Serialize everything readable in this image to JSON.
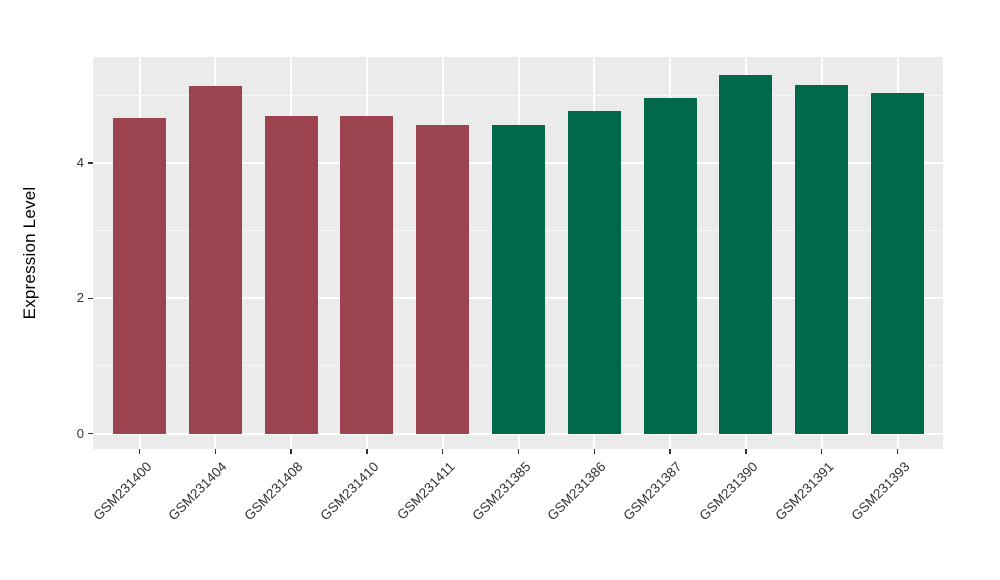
{
  "chart_data": {
    "type": "bar",
    "title": "",
    "ylabel": "Expression Level",
    "xlabel": "",
    "categories": [
      "GSM231400",
      "GSM231404",
      "GSM231408",
      "GSM231410",
      "GSM231411",
      "GSM231385",
      "GSM231386",
      "GSM231387",
      "GSM231390",
      "GSM231391",
      "GSM231393"
    ],
    "values": [
      4.66,
      5.14,
      4.7,
      4.69,
      4.57,
      4.57,
      4.77,
      4.96,
      5.3,
      5.15,
      5.04
    ],
    "bar_colors": [
      "#9B4450",
      "#9B4450",
      "#9B4450",
      "#9B4450",
      "#9B4450",
      "#00694A",
      "#00694A",
      "#00694A",
      "#00694A",
      "#00694A",
      "#00694A"
    ],
    "ytick_labels": [
      "0",
      "2",
      "4"
    ],
    "ytick_values": [
      0,
      2,
      4
    ],
    "minor_gridline_values": [
      1,
      3,
      5
    ],
    "ylim": [
      -0.23,
      5.58
    ],
    "legend": "none",
    "grid": true,
    "panel_background": "#EBEBEB",
    "gridline_color": "#FFFFFF",
    "axis_text_color": "#333333"
  }
}
